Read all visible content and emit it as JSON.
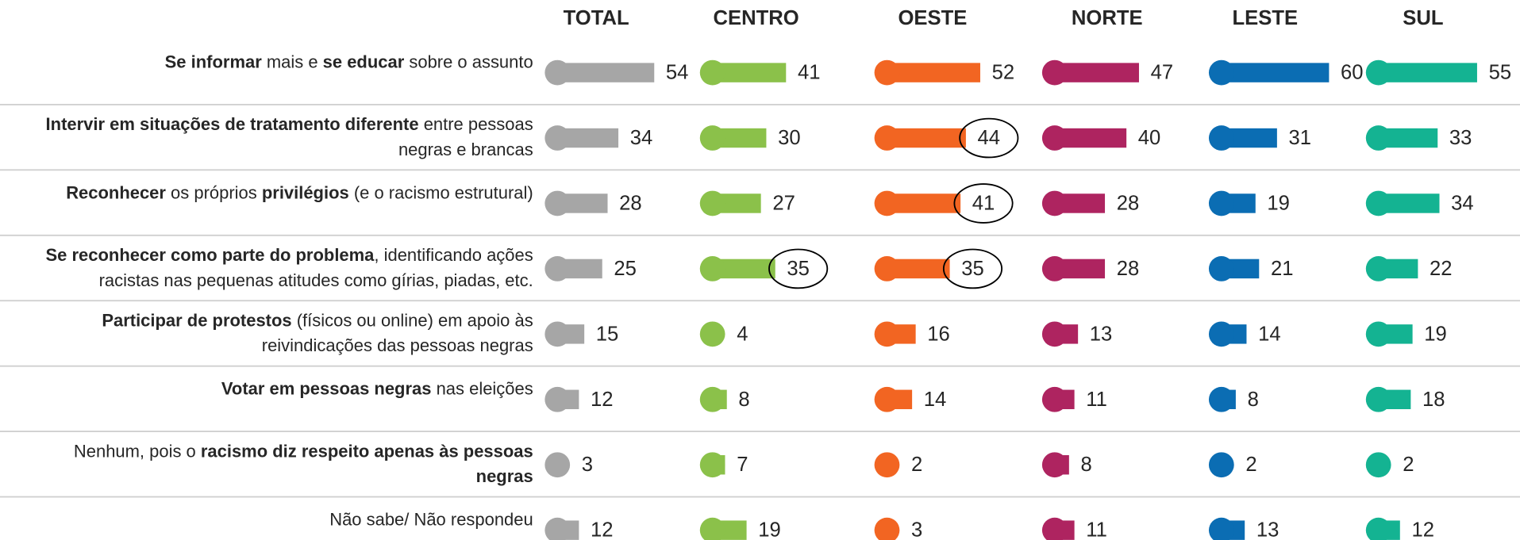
{
  "chart_data": {
    "type": "bar",
    "categories": [
      [
        [
          {
            "text": "Se informar",
            "bold": true
          },
          {
            "text": " mais e "
          },
          {
            "text": "se educar",
            "bold": true
          },
          {
            "text": " sobre o assunto"
          }
        ]
      ],
      [
        [
          {
            "text": "Intervir em situações de tratamento diferente",
            "bold": true
          },
          {
            "text": " entre pessoas"
          }
        ],
        [
          {
            "text": "negras e brancas"
          }
        ]
      ],
      [
        [
          {
            "text": "Reconhecer",
            "bold": true
          },
          {
            "text": " os próprios "
          },
          {
            "text": "privilégios",
            "bold": true
          },
          {
            "text": " (e o racismo estrutural)"
          }
        ]
      ],
      [
        [
          {
            "text": "Se reconhecer como parte do problema",
            "bold": true
          },
          {
            "text": ", identificando ações"
          }
        ],
        [
          {
            "text": "racistas nas pequenas atitudes como gírias, piadas, etc."
          }
        ]
      ],
      [
        [
          {
            "text": "Participar de protestos",
            "bold": true
          },
          {
            "text": " (físicos ou online) em apoio às"
          }
        ],
        [
          {
            "text": "reivindicações das pessoas negras"
          }
        ]
      ],
      [
        [
          {
            "text": "Votar em pessoas negras",
            "bold": true
          },
          {
            "text": " nas eleições"
          }
        ]
      ],
      [
        [
          {
            "text": "Nenhum, pois o "
          },
          {
            "text": "racismo diz respeito apenas às pessoas",
            "bold": true
          }
        ],
        [
          {
            "text": "negras",
            "bold": true
          }
        ]
      ],
      [
        [
          {
            "text": "Não sabe/ Não respondeu"
          }
        ]
      ]
    ],
    "series": [
      {
        "name": "TOTAL",
        "color": "#a6a6a6",
        "values": [
          54,
          34,
          28,
          25,
          15,
          12,
          3,
          12
        ],
        "circled": [
          false,
          false,
          false,
          false,
          false,
          false,
          false,
          false
        ]
      },
      {
        "name": "CENTRO",
        "color": "#8bc14a",
        "values": [
          41,
          30,
          27,
          35,
          4,
          8,
          7,
          19
        ],
        "circled": [
          false,
          false,
          false,
          true,
          false,
          false,
          false,
          false
        ]
      },
      {
        "name": "OESTE",
        "color": "#f26522",
        "values": [
          52,
          44,
          41,
          35,
          16,
          14,
          2,
          3
        ],
        "circled": [
          false,
          true,
          true,
          true,
          false,
          false,
          false,
          false
        ]
      },
      {
        "name": "NORTE",
        "color": "#ae2460",
        "values": [
          47,
          40,
          28,
          28,
          13,
          11,
          8,
          11
        ],
        "circled": [
          false,
          false,
          false,
          false,
          false,
          false,
          false,
          false
        ]
      },
      {
        "name": "LESTE",
        "color": "#0b6db3",
        "values": [
          60,
          31,
          19,
          21,
          14,
          8,
          2,
          13
        ],
        "circled": [
          false,
          false,
          false,
          false,
          false,
          false,
          false,
          false
        ]
      },
      {
        "name": "SUL",
        "color": "#14b392",
        "values": [
          55,
          33,
          34,
          22,
          19,
          18,
          2,
          12
        ],
        "circled": [
          false,
          false,
          false,
          false,
          false,
          false,
          false,
          false
        ]
      }
    ]
  }
}
